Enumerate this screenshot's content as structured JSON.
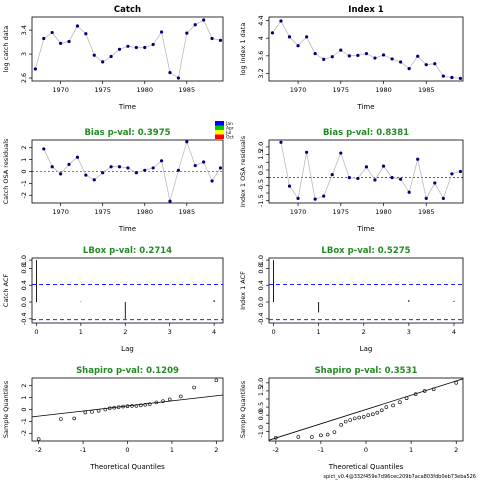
{
  "footer_text": "spict_v0.4@332f459e7d96cec209b7aca803fdb0eb73eba526",
  "legend": {
    "items": [
      {
        "label": "Jan",
        "color": "#0000ff"
      },
      {
        "label": "Apr",
        "color": "#00cc00"
      },
      {
        "label": "Jul",
        "color": "#ffff00"
      },
      {
        "label": "Oct",
        "color": "#ff0000"
      }
    ]
  },
  "chart_data": [
    {
      "id": "catch-data",
      "type": "line",
      "title": "Catch",
      "xlabel": "Time",
      "ylabel": "log catch data",
      "xlim": [
        1966.6,
        1989.3
      ],
      "ylim": [
        2.55,
        3.62
      ],
      "xticks": [
        1970,
        1975,
        1980,
        1985
      ],
      "yticks": [
        2.6,
        3.0,
        3.4
      ],
      "x": [
        1967,
        1968,
        1969,
        1970,
        1971,
        1972,
        1973,
        1974,
        1975,
        1976,
        1977,
        1978,
        1979,
        1980,
        1981,
        1982,
        1983,
        1984,
        1985,
        1986,
        1987,
        1988,
        1989
      ],
      "y": [
        2.75,
        3.26,
        3.36,
        3.18,
        3.21,
        3.47,
        3.34,
        2.98,
        2.87,
        2.96,
        3.08,
        3.13,
        3.11,
        3.11,
        3.16,
        3.37,
        2.69,
        2.6,
        3.35,
        3.49,
        3.57,
        3.26,
        3.23
      ],
      "line_color": "#bbbbbb",
      "marker_color": "#000080"
    },
    {
      "id": "index-data",
      "type": "line",
      "title": "Index 1",
      "xlabel": "Time",
      "ylabel": "log index 1 data",
      "xlim": [
        1966.6,
        1989.3
      ],
      "ylim": [
        3.03,
        4.48
      ],
      "xticks": [
        1970,
        1975,
        1980,
        1985
      ],
      "yticks": [
        3.2,
        3.6,
        4.0,
        4.4
      ],
      "x": [
        1967,
        1968,
        1969,
        1970,
        1971,
        1972,
        1973,
        1974,
        1975,
        1976,
        1977,
        1978,
        1979,
        1980,
        1981,
        1982,
        1983,
        1984,
        1985,
        1986,
        1987,
        1988,
        1989
      ],
      "y": [
        4.12,
        4.39,
        4.03,
        3.83,
        4.03,
        3.65,
        3.52,
        3.58,
        3.73,
        3.6,
        3.61,
        3.65,
        3.55,
        3.62,
        3.53,
        3.46,
        3.31,
        3.59,
        3.4,
        3.42,
        3.14,
        3.11,
        3.09
      ],
      "line_color": "#bbbbbb",
      "marker_color": "#000080"
    },
    {
      "id": "catch-resid",
      "type": "line",
      "title": "Bias p-val: 0.3975",
      "title_color": "#228b22",
      "xlabel": "Time",
      "ylabel": "Catch OSA residuals",
      "xlim": [
        1966.6,
        1989.3
      ],
      "ylim": [
        -2.65,
        2.65
      ],
      "xticks": [
        1970,
        1975,
        1980,
        1985
      ],
      "yticks": [
        -2,
        -1,
        0,
        1,
        2
      ],
      "zero_line": true,
      "x": [
        1968,
        1969,
        1970,
        1971,
        1972,
        1973,
        1974,
        1975,
        1976,
        1977,
        1978,
        1979,
        1980,
        1981,
        1982,
        1983,
        1984,
        1985,
        1986,
        1987,
        1988,
        1989
      ],
      "y": [
        1.9,
        0.4,
        -0.2,
        0.6,
        1.2,
        -0.3,
        -0.7,
        -0.1,
        0.4,
        0.4,
        0.3,
        -0.1,
        0.1,
        0.3,
        0.9,
        -2.5,
        0.1,
        2.5,
        0.5,
        0.8,
        -0.8,
        0.3
      ],
      "line_color": "#bbbbbb",
      "marker_color": "#000080"
    },
    {
      "id": "index-resid",
      "type": "line",
      "title": "Bias p-val: 0.8381",
      "title_color": "#228b22",
      "xlabel": "Time",
      "ylabel": "Index 1 OSA residuals",
      "xlim": [
        1966.6,
        1989.3
      ],
      "ylim": [
        -1.65,
        2.45
      ],
      "xticks": [
        1970,
        1975,
        1980,
        1985
      ],
      "yticks": [
        -1.5,
        -0.5,
        0.5,
        1.5,
        2.0
      ],
      "ytick_labels": [
        "-1.5",
        "-0.5",
        "0.5",
        "1.5",
        "2.0"
      ],
      "yticks_minor": [
        -1.0,
        0.0,
        1.0
      ],
      "zero_line": true,
      "x": [
        1968,
        1969,
        1970,
        1971,
        1972,
        1973,
        1974,
        1975,
        1976,
        1977,
        1978,
        1979,
        1980,
        1981,
        1982,
        1983,
        1984,
        1985,
        1986,
        1987,
        1988,
        1989
      ],
      "y": [
        2.3,
        -0.55,
        -1.35,
        1.65,
        -1.4,
        -1.2,
        0.2,
        1.6,
        0.0,
        -0.05,
        0.7,
        -0.15,
        0.75,
        0.0,
        -0.1,
        -0.95,
        1.2,
        -1.35,
        -0.35,
        -1.35,
        0.25,
        0.4
      ],
      "line_color": "#bbbbbb",
      "marker_color": "#000080"
    },
    {
      "id": "catch-acf",
      "type": "bar",
      "title": "LBox p-val: 0.2714",
      "title_color": "#228b22",
      "xlabel": "Lag",
      "ylabel": "Catch ACF",
      "xlim": [
        -0.1,
        4.2
      ],
      "ylim": [
        -0.5,
        1.05
      ],
      "xticks": [
        0,
        1,
        2,
        3,
        4
      ],
      "yticks": [
        -0.4,
        0.0,
        0.4,
        0.8,
        1.0
      ],
      "ytick_labels": [
        "-0.4",
        "0.0",
        "0.4",
        "0.8",
        "1.0"
      ],
      "x": [
        0,
        1,
        2,
        3,
        4
      ],
      "y": [
        1.0,
        0.01,
        -0.4,
        0.0,
        0.05
      ],
      "conf_limit": 0.42,
      "conf_color": "#0000ff"
    },
    {
      "id": "index-acf",
      "type": "bar",
      "title": "LBox p-val: 0.5275",
      "title_color": "#228b22",
      "xlabel": "Lag",
      "ylabel": "Index 1 ACF",
      "xlim": [
        -0.1,
        4.2
      ],
      "ylim": [
        -0.5,
        1.05
      ],
      "xticks": [
        0,
        1,
        2,
        3,
        4
      ],
      "yticks": [
        -0.4,
        0.0,
        0.4,
        0.8,
        1.0
      ],
      "ytick_labels": [
        "-0.4",
        "0.0",
        "0.4",
        "0.8",
        "1.0"
      ],
      "x": [
        0,
        1,
        2,
        3,
        4
      ],
      "y": [
        1.0,
        -0.25,
        0.0,
        0.05,
        0.03
      ],
      "conf_limit": 0.42,
      "conf_color": "#0000ff"
    },
    {
      "id": "catch-qq",
      "type": "scatter",
      "title": "Shapiro p-val: 0.1209",
      "title_color": "#228b22",
      "xlabel": "Theoretical Quantiles",
      "ylabel": "Sample Quantiles",
      "xlim": [
        -2.15,
        2.15
      ],
      "ylim": [
        -2.65,
        2.65
      ],
      "xticks": [
        -2,
        -1,
        0,
        1,
        2
      ],
      "yticks": [
        -2,
        -1,
        0,
        1,
        2
      ],
      "x": [
        -2.0,
        -1.5,
        -1.2,
        -0.95,
        -0.8,
        -0.65,
        -0.5,
        -0.4,
        -0.3,
        -0.2,
        -0.1,
        0.0,
        0.1,
        0.2,
        0.3,
        0.4,
        0.5,
        0.65,
        0.8,
        0.95,
        1.2,
        1.5,
        2.0
      ],
      "y": [
        -2.5,
        -0.8,
        -0.75,
        -0.25,
        -0.2,
        -0.1,
        0.0,
        0.1,
        0.15,
        0.2,
        0.25,
        0.28,
        0.3,
        0.3,
        0.35,
        0.4,
        0.45,
        0.6,
        0.7,
        0.85,
        1.1,
        1.85,
        2.45
      ],
      "qq_line": {
        "x": [
          -2.15,
          2.15
        ],
        "y": [
          -0.62,
          1.22
        ]
      }
    },
    {
      "id": "index-qq",
      "type": "scatter",
      "title": "Shapiro p-val: 0.3531",
      "title_color": "#228b22",
      "xlabel": "Theoretical Quantiles",
      "ylabel": "Sample Quantiles",
      "xlim": [
        -2.15,
        2.15
      ],
      "ylim": [
        -1.6,
        2.3
      ],
      "xticks": [
        -2,
        -1,
        0,
        1,
        2
      ],
      "yticks": [
        -1.0,
        0.0,
        0.5,
        1.5,
        2.0
      ],
      "ytick_labels": [
        "-1.0",
        "0.0",
        "0.5",
        "1.5",
        "2.0"
      ],
      "yticks_minor": [
        -0.5,
        1.0
      ],
      "x": [
        -2.0,
        -1.5,
        -1.2,
        -1.0,
        -0.85,
        -0.7,
        -0.55,
        -0.45,
        -0.35,
        -0.25,
        -0.15,
        -0.05,
        0.05,
        0.15,
        0.25,
        0.35,
        0.45,
        0.6,
        0.75,
        0.9,
        1.1,
        1.3,
        1.5,
        2.0
      ],
      "y": [
        -1.4,
        -1.35,
        -1.35,
        -1.25,
        -1.2,
        -1.05,
        -0.6,
        -0.4,
        -0.3,
        -0.2,
        -0.15,
        -0.1,
        0.0,
        0.05,
        0.15,
        0.3,
        0.5,
        0.6,
        0.8,
        1.05,
        1.3,
        1.5,
        1.6,
        2.0
      ],
      "qq_line": {
        "x": [
          -2.15,
          2.15
        ],
        "y": [
          -1.55,
          2.25
        ]
      }
    }
  ]
}
